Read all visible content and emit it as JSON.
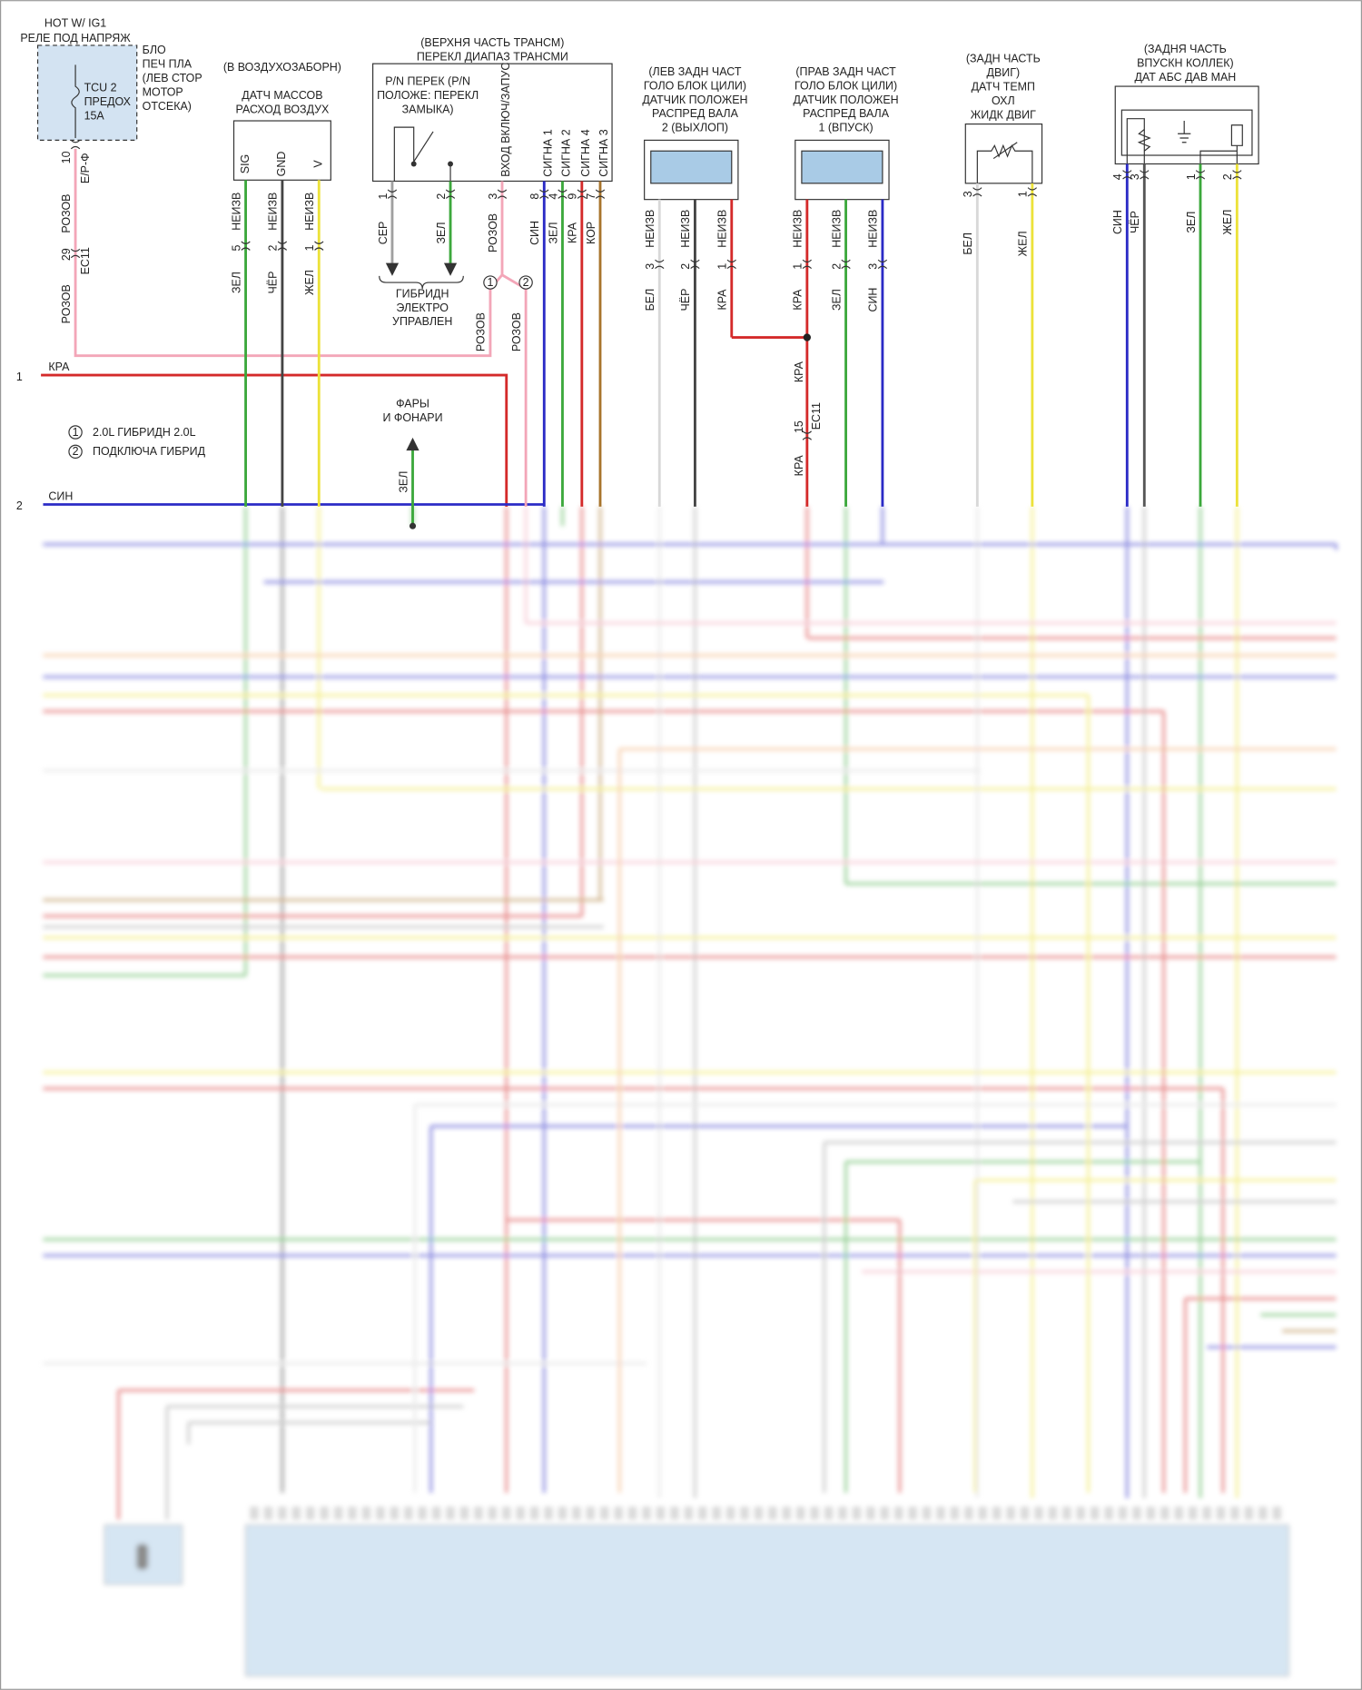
{
  "fuse_block": {
    "header": [
      "HOT W/ IG1",
      "РЕЛЕ ПОД НАПРЯЖ"
    ],
    "location": [
      "БЛО",
      "ПЕЧ ПЛА",
      "(ЛЕВ СТОР",
      "МОТОР",
      "ОТСЕКА)"
    ],
    "fuse": [
      "TCU 2",
      "ПРЕДОХ",
      "15А"
    ],
    "pin": "10",
    "terminal": "E/P-Ф",
    "wire_top": "РОЗОВ",
    "connector_pin": "29",
    "connector": "EC11",
    "wire_bottom": "РОЗОВ"
  },
  "feed_wire": {
    "pin": "1",
    "color": "КРА"
  },
  "bus_wire": {
    "pin": "2",
    "color": "СИН"
  },
  "notes": [
    {
      "mark": "1",
      "text": "2.0L ГИБРИДН 2.0L"
    },
    {
      "mark": "2",
      "text": "ПОДКЛЮЧА ГИБРИД"
    }
  ],
  "maf": {
    "location": "(В ВОЗДУХОЗАБОРН)",
    "name": [
      "ДАТЧ МАССОВ",
      "РАСХОД ВОЗДУХ"
    ],
    "pins": [
      {
        "label": "SIG",
        "num": "5",
        "type": "НЕИЗВ",
        "wire": "ЗЕЛ"
      },
      {
        "label": "GND",
        "num": "2",
        "type": "НЕИЗВ",
        "wire": "ЧЁР"
      },
      {
        "label": "V",
        "num": "1",
        "type": "НЕИЗВ",
        "wire": "ЖЕЛ"
      }
    ]
  },
  "range_switch": {
    "name": [
      "(ВЕРХНЯ ЧАСТЬ ТРАНСМ)",
      "ПЕРЕКЛ ДИАПАЗ ТРАНСМИ"
    ],
    "pn_switch": [
      "P/N ПЕРЕК (P/N",
      "ПОЛОЖЕ: ПЕРЕКЛ",
      "ЗАМЫКА)"
    ],
    "pins": [
      {
        "num": "1",
        "wire": "СЕР"
      },
      {
        "num": "2",
        "wire": "ЗЕЛ"
      },
      {
        "num": "3",
        "label": "ВХОД ВКЛЮЧ/ЗАПУС",
        "wire": "РОЗОВ"
      },
      {
        "num": "8",
        "label": "СИГНА 1",
        "wire": "СИН"
      },
      {
        "num": "4",
        "label": "СИГНА 2",
        "wire": "ЗЕЛ"
      },
      {
        "num": "9",
        "label": "СИГНА 4",
        "wire": "КРА"
      },
      {
        "num": "7",
        "label": "СИГНА 3",
        "wire": "КОР"
      }
    ],
    "hybrid": [
      "ГИБРИДН",
      "ЭЛЕКТРО",
      "УПРАВЛЕН"
    ],
    "branches": [
      {
        "mark": "1",
        "wire": "РОЗОВ"
      },
      {
        "mark": "2",
        "wire": "РОЗОВ"
      }
    ]
  },
  "lights": {
    "name": [
      "ФАРЫ",
      "И ФОНАРИ"
    ],
    "wire": "ЗЕЛ"
  },
  "cam2": {
    "name": [
      "(ЛЕВ ЗАДН ЧАСТ",
      "ГОЛО БЛОК ЦИЛИ)",
      "ДАТЧИК ПОЛОЖЕН",
      "РАСПРЕД ВАЛА",
      "2 (ВЫХЛОП)"
    ],
    "pins": [
      {
        "num": "3",
        "type": "НЕИЗВ",
        "wire": "БЕЛ"
      },
      {
        "num": "2",
        "type": "НЕИЗВ",
        "wire": "ЧЁР"
      },
      {
        "num": "1",
        "type": "НЕИЗВ",
        "wire": "КРА"
      }
    ]
  },
  "cam1": {
    "name": [
      "(ПРАВ ЗАДН ЧАСТ",
      "ГОЛО БЛОК ЦИЛИ)",
      "ДАТЧИК ПОЛОЖЕН",
      "РАСПРЕД ВАЛА",
      "1 (ВПУСК)"
    ],
    "pins": [
      {
        "num": "1",
        "type": "НЕИЗВ",
        "wire": "КРА"
      },
      {
        "num": "2",
        "type": "НЕИЗВ",
        "wire": "ЗЕЛ"
      },
      {
        "num": "3",
        "type": "НЕИЗВ",
        "wire": "СИН"
      }
    ],
    "wire_upper": "КРА",
    "connector_pin": "15",
    "connector": "EC11",
    "wire_lower": "КРА"
  },
  "ect": {
    "name": [
      "(ЗАДН ЧАСТЬ",
      "ДВИГ)",
      "ДАТЧ ТЕМП",
      "ОХЛ",
      "ЖИДК ДВИГ"
    ],
    "pins": [
      {
        "num": "3",
        "wire": "БЕЛ"
      },
      {
        "num": "1",
        "wire": "ЖЕЛ"
      }
    ]
  },
  "map": {
    "name": [
      "(ЗАДНЯ ЧАСТЬ",
      "ВПУСКН КОЛЛЕК)",
      "ДАТ АБС ДАВ МАН"
    ],
    "pins": [
      {
        "num": "4",
        "wire": "СИН"
      },
      {
        "num": "3",
        "wire": "ЧЁР"
      },
      {
        "num": "1",
        "wire": "ЗЕЛ"
      },
      {
        "num": "2",
        "wire": "ЖЕЛ"
      }
    ]
  }
}
